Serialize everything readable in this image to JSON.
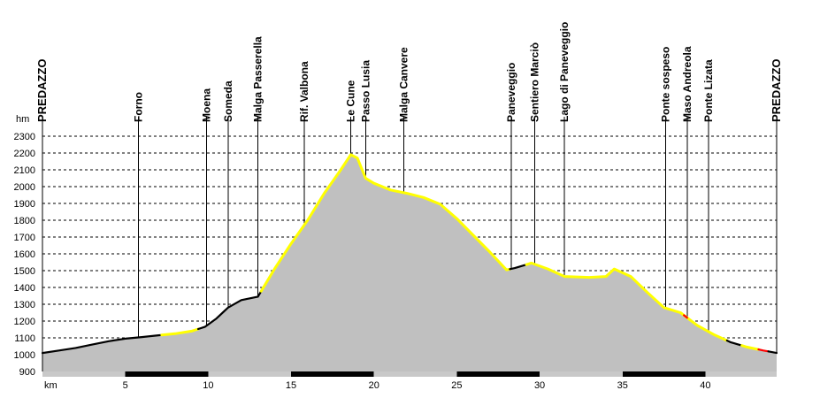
{
  "chart_data": {
    "type": "area",
    "yunit": "hm",
    "xunit": "km",
    "ylim": [
      900,
      2300
    ],
    "xlim": [
      0,
      44.3
    ],
    "yticks": [
      "2300",
      "2200",
      "2100",
      "2000",
      "1900",
      "1800",
      "1700",
      "1600",
      "1500",
      "1400",
      "1300",
      "1200",
      "1100",
      "1000",
      "900"
    ],
    "xticks": [
      "5",
      "10",
      "15",
      "20",
      "25",
      "30",
      "35",
      "40"
    ],
    "grid": true,
    "profile": {
      "x": [
        0,
        1,
        2,
        3,
        4,
        5,
        6,
        7,
        8,
        9,
        9.8,
        10.5,
        11.2,
        12,
        13,
        14,
        15,
        16,
        17,
        18,
        18.6,
        19,
        19.5,
        20,
        21,
        22,
        23,
        24,
        25,
        26,
        27,
        28,
        28.5,
        29.5,
        30.5,
        31.5,
        33,
        34,
        34.5,
        35.5,
        36.5,
        37.5,
        38.5,
        39.5,
        40.5,
        41.5,
        42.5,
        43.5,
        44.3
      ],
      "y": [
        1010,
        1025,
        1040,
        1060,
        1080,
        1095,
        1105,
        1115,
        1125,
        1140,
        1165,
        1215,
        1280,
        1325,
        1345,
        1510,
        1660,
        1800,
        1960,
        2100,
        2190,
        2170,
        2050,
        2020,
        1980,
        1960,
        1935,
        1895,
        1810,
        1710,
        1610,
        1505,
        1515,
        1545,
        1510,
        1465,
        1460,
        1465,
        1510,
        1465,
        1370,
        1280,
        1250,
        1175,
        1120,
        1075,
        1045,
        1025,
        1010
      ]
    },
    "segments": [
      {
        "from": 0,
        "to": 7.2,
        "color": "#000000"
      },
      {
        "from": 7.2,
        "to": 9.4,
        "color": "#ffff00"
      },
      {
        "from": 9.4,
        "to": 13.2,
        "color": "#000000"
      },
      {
        "from": 13.2,
        "to": 28.2,
        "color": "#ffff00"
      },
      {
        "from": 28.2,
        "to": 29.2,
        "color": "#000000"
      },
      {
        "from": 29.2,
        "to": 41.3,
        "color": "#ffff00"
      },
      {
        "from": 38.7,
        "to": 38.9,
        "color": "#ff0000"
      },
      {
        "from": 41.3,
        "to": 42.2,
        "color": "#000000"
      },
      {
        "from": 42.2,
        "to": 43.2,
        "color": "#ffff00"
      },
      {
        "from": 43.2,
        "to": 43.8,
        "color": "#ff0000"
      },
      {
        "from": 43.8,
        "to": 44.3,
        "color": "#000000"
      }
    ],
    "distance_bar": [
      {
        "from": 0,
        "to": 5,
        "color": "#c8c8c8"
      },
      {
        "from": 5,
        "to": 10,
        "color": "#000000"
      },
      {
        "from": 10,
        "to": 15,
        "color": "#c8c8c8"
      },
      {
        "from": 15,
        "to": 20,
        "color": "#000000"
      },
      {
        "from": 20,
        "to": 25,
        "color": "#c8c8c8"
      },
      {
        "from": 25,
        "to": 30,
        "color": "#000000"
      },
      {
        "from": 30,
        "to": 35,
        "color": "#c8c8c8"
      },
      {
        "from": 35,
        "to": 40,
        "color": "#000000"
      },
      {
        "from": 40,
        "to": 44.3,
        "color": "#c8c8c8"
      }
    ],
    "waypoints": [
      {
        "label": "PREDAZZO",
        "x": 0,
        "y": 1010
      },
      {
        "label": "Forno",
        "x": 5.8,
        "y": 1098
      },
      {
        "label": "Moena",
        "x": 9.9,
        "y": 1170
      },
      {
        "label": "Someda",
        "x": 11.2,
        "y": 1280
      },
      {
        "label": "Malga Passerella",
        "x": 13.0,
        "y": 1345
      },
      {
        "label": "Rif. Valbona",
        "x": 15.8,
        "y": 1780
      },
      {
        "label": "Le Cune",
        "x": 18.6,
        "y": 2190
      },
      {
        "label": "Passo Lusia",
        "x": 19.5,
        "y": 2050
      },
      {
        "label": "Malga Canvere",
        "x": 21.8,
        "y": 1965
      },
      {
        "label": "Paneveggio",
        "x": 28.3,
        "y": 1505
      },
      {
        "label": "Sentiero Marciò",
        "x": 29.7,
        "y": 1545
      },
      {
        "label": "Lago di Paneveggio",
        "x": 31.5,
        "y": 1465
      },
      {
        "label": "Ponte sospeso",
        "x": 37.6,
        "y": 1270
      },
      {
        "label": "Maso Andreola",
        "x": 38.9,
        "y": 1215
      },
      {
        "label": "Ponte Lizata",
        "x": 40.2,
        "y": 1130
      },
      {
        "label": "PREDAZZO",
        "x": 44.3,
        "y": 1010
      }
    ],
    "colors": {
      "fill": "#c0c0c0",
      "grid": "#000000"
    }
  }
}
